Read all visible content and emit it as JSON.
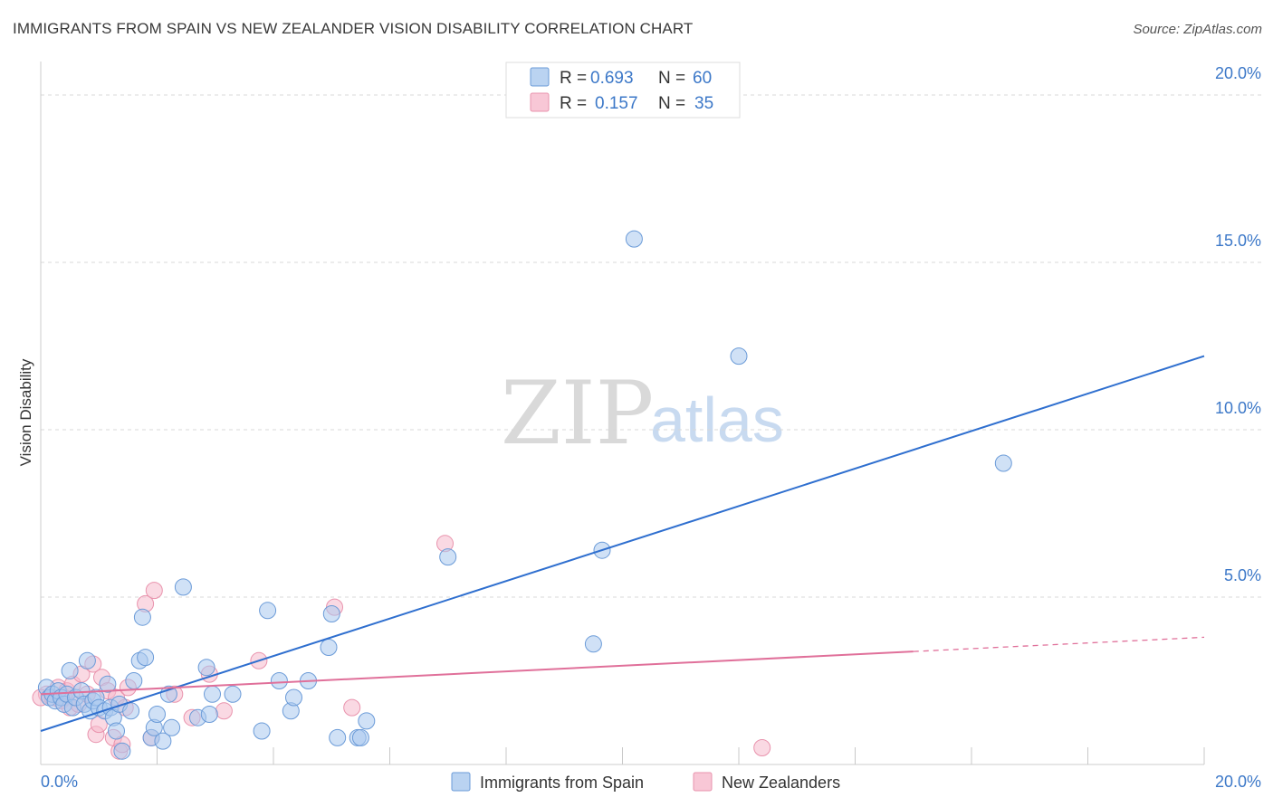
{
  "header": {
    "title": "IMMIGRANTS FROM SPAIN VS NEW ZEALANDER VISION DISABILITY CORRELATION CHART",
    "source": "Source: ZipAtlas.com"
  },
  "watermark": {
    "zip": "ZIP",
    "atlas": "atlas"
  },
  "legend": {
    "series": [
      {
        "r_label": "R =",
        "r_value": "0.693",
        "n_label": "N =",
        "n_value": "60"
      },
      {
        "r_label": "R =",
        "r_value": "0.157",
        "n_label": "N =",
        "n_value": "35"
      }
    ]
  },
  "chart_data": {
    "type": "scatter",
    "title": "IMMIGRANTS FROM SPAIN VS NEW ZEALANDER VISION DISABILITY CORRELATION CHART",
    "xlabel": "",
    "ylabel": "Vision Disability",
    "xlim": [
      0,
      20
    ],
    "ylim": [
      0,
      21
    ],
    "x_tick_labels": [
      {
        "value": 0,
        "label": "0.0%"
      },
      {
        "value": 20,
        "label": "20.0%"
      }
    ],
    "y_tick_labels": [
      {
        "value": 5,
        "label": "5.0%"
      },
      {
        "value": 10,
        "label": "10.0%"
      },
      {
        "value": 15,
        "label": "15.0%"
      },
      {
        "value": 20,
        "label": "20.0%"
      }
    ],
    "x_minor_ticks": [
      2,
      4,
      6,
      8,
      10,
      12,
      14,
      16,
      18,
      20
    ],
    "grid": true,
    "colors": {
      "spain_fill": "#a9c8ee",
      "spain_stroke": "#6b9bd8",
      "spain_line": "#2f6fcf",
      "nz_fill": "#f6b9cc",
      "nz_stroke": "#e993ad",
      "nz_line": "#e0709a",
      "grid": "#d8d8d8",
      "tick_text": "#3c78c8"
    },
    "series": [
      {
        "name": "Immigrants from Spain",
        "r": 0.693,
        "n": 60,
        "points": [
          [
            0.1,
            2.3
          ],
          [
            0.15,
            2.0
          ],
          [
            0.2,
            2.1
          ],
          [
            0.25,
            1.9
          ],
          [
            0.3,
            2.2
          ],
          [
            0.35,
            2.0
          ],
          [
            0.4,
            1.8
          ],
          [
            0.45,
            2.1
          ],
          [
            0.5,
            2.8
          ],
          [
            0.55,
            1.7
          ],
          [
            0.6,
            2.0
          ],
          [
            0.7,
            2.2
          ],
          [
            0.75,
            1.8
          ],
          [
            0.8,
            3.1
          ],
          [
            0.85,
            1.6
          ],
          [
            0.9,
            1.9
          ],
          [
            0.95,
            2.0
          ],
          [
            1.0,
            1.7
          ],
          [
            1.1,
            1.6
          ],
          [
            1.15,
            2.4
          ],
          [
            1.2,
            1.7
          ],
          [
            1.25,
            1.4
          ],
          [
            1.3,
            1.0
          ],
          [
            1.35,
            1.8
          ],
          [
            1.4,
            0.4
          ],
          [
            1.55,
            1.6
          ],
          [
            1.6,
            2.5
          ],
          [
            1.7,
            3.1
          ],
          [
            1.75,
            4.4
          ],
          [
            1.8,
            3.2
          ],
          [
            1.9,
            0.8
          ],
          [
            1.95,
            1.1
          ],
          [
            2.0,
            1.5
          ],
          [
            2.1,
            0.7
          ],
          [
            2.2,
            2.1
          ],
          [
            2.25,
            1.1
          ],
          [
            2.45,
            5.3
          ],
          [
            2.7,
            1.4
          ],
          [
            2.85,
            2.9
          ],
          [
            2.9,
            1.5
          ],
          [
            2.95,
            2.1
          ],
          [
            3.3,
            2.1
          ],
          [
            3.8,
            1.0
          ],
          [
            3.9,
            4.6
          ],
          [
            4.1,
            2.5
          ],
          [
            4.3,
            1.6
          ],
          [
            4.35,
            2.0
          ],
          [
            4.6,
            2.5
          ],
          [
            4.95,
            3.5
          ],
          [
            5.0,
            4.5
          ],
          [
            5.1,
            0.8
          ],
          [
            5.45,
            0.8
          ],
          [
            5.5,
            0.8
          ],
          [
            5.6,
            1.3
          ],
          [
            7.0,
            6.2
          ],
          [
            9.5,
            3.6
          ],
          [
            9.65,
            6.4
          ],
          [
            10.2,
            15.7
          ],
          [
            12.0,
            12.2
          ],
          [
            16.55,
            9.0
          ]
        ],
        "trendline": {
          "x": [
            0,
            20
          ],
          "y": [
            1.0,
            12.2
          ],
          "dashed_from": null
        }
      },
      {
        "name": "New Zealanders",
        "r": 0.157,
        "n": 35,
        "points": [
          [
            0.1,
            2.1
          ],
          [
            0.2,
            2.0
          ],
          [
            0.3,
            2.3
          ],
          [
            0.35,
            1.9
          ],
          [
            0.4,
            2.0
          ],
          [
            0.45,
            2.2
          ],
          [
            0.5,
            1.7
          ],
          [
            0.55,
            2.4
          ],
          [
            0.65,
            1.8
          ],
          [
            0.7,
            2.7
          ],
          [
            0.8,
            2.1
          ],
          [
            0.9,
            3.0
          ],
          [
            0.95,
            0.9
          ],
          [
            1.0,
            1.2
          ],
          [
            1.05,
            2.6
          ],
          [
            1.15,
            2.2
          ],
          [
            1.25,
            0.8
          ],
          [
            1.3,
            2.0
          ],
          [
            1.35,
            0.4
          ],
          [
            1.4,
            0.6
          ],
          [
            1.45,
            1.7
          ],
          [
            1.5,
            2.3
          ],
          [
            1.8,
            4.8
          ],
          [
            1.9,
            0.8
          ],
          [
            1.95,
            5.2
          ],
          [
            2.3,
            2.1
          ],
          [
            2.6,
            1.4
          ],
          [
            2.9,
            2.7
          ],
          [
            3.15,
            1.6
          ],
          [
            3.75,
            3.1
          ],
          [
            5.05,
            4.7
          ],
          [
            5.35,
            1.7
          ],
          [
            6.95,
            6.6
          ],
          [
            12.4,
            0.5
          ],
          [
            0.0,
            2.0
          ]
        ],
        "trendline": {
          "x": [
            0,
            20
          ],
          "y": [
            2.1,
            3.8
          ],
          "dashed_from": 15.0
        }
      }
    ]
  },
  "bottom_legend": {
    "items": [
      {
        "label": "Immigrants from Spain"
      },
      {
        "label": "New Zealanders"
      }
    ]
  }
}
